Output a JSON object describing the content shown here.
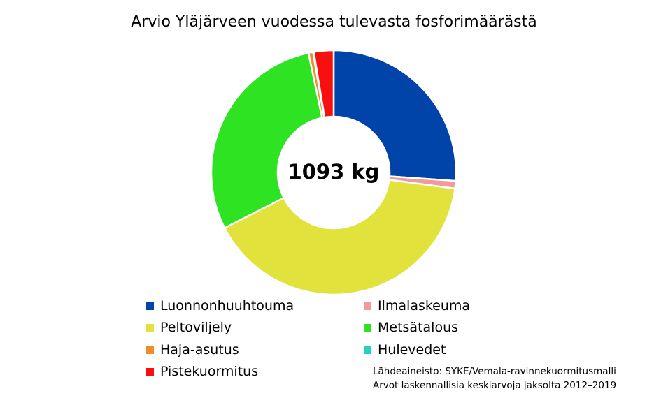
{
  "chart_data": {
    "type": "pie",
    "title": "Arvio Yläjärveen vuodessa tulevasta fosforimäärästä",
    "center_label": "1093 kg",
    "categories": [
      "Luonnonhuuhtouma",
      "Ilmalaskeuma",
      "Peltoviljely",
      "Metsätalous",
      "Haja-asutus",
      "Hulevedet",
      "Pistekuormitus"
    ],
    "values": [
      26.1,
      1.0,
      40.4,
      29.2,
      0.6,
      0.1,
      2.6
    ],
    "value_unit": "%",
    "colors": [
      "#0043a9",
      "#f19a9b",
      "#e1e33c",
      "#2ee322",
      "#ef8d2c",
      "#22d4c0",
      "#fa0f0f"
    ],
    "legend_placement": "bottom",
    "source_lines": [
      "Lähdeaineisto: SYKE/Vemala-ravinnekuormitusmalli",
      "Arvot laskennallisia keskiarvoja jaksolta 2012–2019"
    ]
  }
}
